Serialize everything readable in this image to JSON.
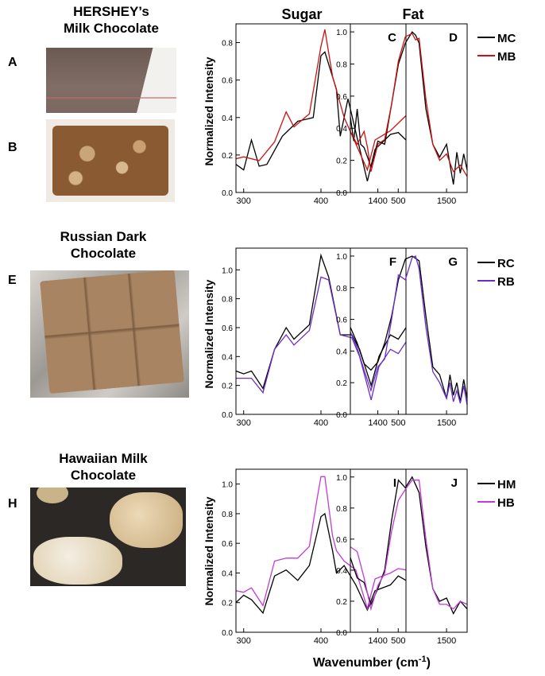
{
  "captions": {
    "hershey": [
      "HERSHEY’s",
      "Milk Chocolate"
    ],
    "russian": [
      "Russian Dark",
      "Chocolate"
    ],
    "hawaiian": [
      "Hawaiian Milk",
      "Chocolate"
    ]
  },
  "photo_labels": {
    "a": "A",
    "b": "B",
    "e": "E",
    "h": "H"
  },
  "column_titles": {
    "sugar": "Sugar",
    "fat": "Fat"
  },
  "ylabel": "Normalized Intensity",
  "xlabel": {
    "main": "Wavenumber (cm",
    "sup": "-1",
    "close": ")"
  },
  "colors": {
    "black": "#000000",
    "red": "#d01010",
    "purple": "#6a2ec8",
    "magenta": "#c23ad8"
  },
  "legends": [
    {
      "series": [
        {
          "name": "MC",
          "color": "#000000"
        },
        {
          "name": "MB",
          "color": "#d01010"
        }
      ]
    },
    {
      "series": [
        {
          "name": "RC",
          "color": "#000000"
        },
        {
          "name": "RB",
          "color": "#6a2ec8"
        }
      ]
    },
    {
      "series": [
        {
          "name": "HM",
          "color": "#000000"
        },
        {
          "name": "HB",
          "color": "#c23ad8"
        }
      ]
    }
  ],
  "chart_data": [
    {
      "panel": "C",
      "type": "line",
      "xlim": [
        290,
        510
      ],
      "ylim": [
        0,
        0.9
      ],
      "xticks": [
        300,
        400,
        500
      ],
      "yticks": [
        0.0,
        0.2,
        0.4,
        0.6,
        0.8
      ],
      "series": [
        {
          "name": "MC",
          "color": "#000000",
          "x": [
            290,
            300,
            310,
            320,
            330,
            350,
            370,
            390,
            400,
            405,
            420,
            425,
            435,
            460,
            470,
            490,
            500,
            510
          ],
          "y": [
            0.15,
            0.12,
            0.28,
            0.14,
            0.15,
            0.3,
            0.38,
            0.4,
            0.73,
            0.75,
            0.55,
            0.3,
            0.5,
            0.06,
            0.23,
            0.31,
            0.32,
            0.28
          ]
        },
        {
          "name": "MB",
          "color": "#d01010",
          "x": [
            290,
            300,
            320,
            340,
            355,
            365,
            385,
            400,
            405,
            415,
            430,
            460,
            470,
            490,
            510
          ],
          "y": [
            0.18,
            0.19,
            0.17,
            0.27,
            0.43,
            0.35,
            0.42,
            0.78,
            0.87,
            0.62,
            0.4,
            0.12,
            0.28,
            0.33,
            0.41
          ]
        }
      ]
    },
    {
      "panel": "D",
      "type": "line",
      "xlim": [
        1360,
        1530
      ],
      "ylim": [
        0,
        1.05
      ],
      "xticks": [
        1400,
        1500
      ],
      "yticks": [
        0.0,
        0.2,
        0.4,
        0.6,
        0.8,
        1.0
      ],
      "series": [
        {
          "name": "MC",
          "color": "#000000",
          "x": [
            1360,
            1365,
            1370,
            1375,
            1380,
            1390,
            1400,
            1410,
            1420,
            1430,
            1440,
            1450,
            1455,
            1460,
            1470,
            1480,
            1490,
            1500,
            1510,
            1515,
            1520,
            1525,
            1530
          ],
          "y": [
            0.47,
            0.32,
            0.52,
            0.3,
            0.28,
            0.16,
            0.32,
            0.3,
            0.55,
            0.8,
            0.93,
            1.0,
            0.98,
            0.93,
            0.52,
            0.3,
            0.22,
            0.3,
            0.05,
            0.25,
            0.12,
            0.24,
            0.14
          ]
        },
        {
          "name": "MB",
          "color": "#d01010",
          "x": [
            1360,
            1370,
            1380,
            1385,
            1390,
            1400,
            1410,
            1420,
            1430,
            1440,
            1450,
            1455,
            1460,
            1470,
            1480,
            1490,
            1500,
            1510,
            1520,
            1530
          ],
          "y": [
            0.38,
            0.3,
            0.38,
            0.28,
            0.13,
            0.3,
            0.33,
            0.55,
            0.82,
            0.97,
            0.99,
            0.95,
            0.96,
            0.58,
            0.3,
            0.2,
            0.24,
            0.13,
            0.17,
            0.1
          ]
        }
      ]
    },
    {
      "panel": "F",
      "type": "line",
      "xlim": [
        290,
        510
      ],
      "ylim": [
        0,
        1.15
      ],
      "xticks": [
        300,
        400,
        500
      ],
      "yticks": [
        0.0,
        0.2,
        0.4,
        0.6,
        0.8,
        1.0
      ],
      "series": [
        {
          "name": "RC",
          "color": "#000000",
          "x": [
            290,
            300,
            310,
            325,
            340,
            355,
            365,
            385,
            400,
            410,
            425,
            440,
            450,
            465,
            475,
            490,
            500,
            510
          ],
          "y": [
            0.3,
            0.28,
            0.3,
            0.18,
            0.45,
            0.6,
            0.52,
            0.62,
            1.1,
            0.95,
            0.55,
            0.55,
            0.45,
            0.2,
            0.4,
            0.55,
            0.52,
            0.6
          ]
        },
        {
          "name": "RB",
          "color": "#6a2ec8",
          "x": [
            290,
            300,
            310,
            325,
            340,
            355,
            365,
            385,
            400,
            410,
            425,
            440,
            450,
            465,
            475,
            490,
            500,
            510
          ],
          "y": [
            0.25,
            0.25,
            0.25,
            0.15,
            0.45,
            0.55,
            0.48,
            0.58,
            0.95,
            0.93,
            0.55,
            0.53,
            0.4,
            0.1,
            0.33,
            0.45,
            0.42,
            0.5
          ]
        }
      ]
    },
    {
      "panel": "G",
      "type": "line",
      "xlim": [
        1360,
        1530
      ],
      "ylim": [
        0,
        1.05
      ],
      "xticks": [
        1400,
        1500
      ],
      "yticks": [
        0.0,
        0.2,
        0.4,
        0.6,
        0.8,
        1.0
      ],
      "series": [
        {
          "name": "RC",
          "color": "#000000",
          "x": [
            1360,
            1370,
            1380,
            1390,
            1400,
            1410,
            1420,
            1430,
            1440,
            1450,
            1460,
            1470,
            1480,
            1490,
            1500,
            1505,
            1510,
            1515,
            1520,
            1525,
            1530
          ],
          "y": [
            0.55,
            0.45,
            0.32,
            0.28,
            0.33,
            0.45,
            0.62,
            0.85,
            0.98,
            1.0,
            0.97,
            0.62,
            0.3,
            0.25,
            0.1,
            0.25,
            0.12,
            0.2,
            0.08,
            0.22,
            0.1
          ]
        },
        {
          "name": "RB",
          "color": "#6a2ec8",
          "x": [
            1360,
            1370,
            1380,
            1390,
            1400,
            1410,
            1420,
            1430,
            1440,
            1450,
            1455,
            1460,
            1470,
            1480,
            1490,
            1500,
            1505,
            1510,
            1515,
            1520,
            1525,
            1530
          ],
          "y": [
            0.52,
            0.42,
            0.28,
            0.15,
            0.3,
            0.35,
            0.6,
            0.88,
            0.85,
            0.99,
            1.0,
            0.92,
            0.55,
            0.27,
            0.2,
            0.1,
            0.2,
            0.08,
            0.15,
            0.07,
            0.18,
            0.06
          ]
        }
      ]
    },
    {
      "panel": "I",
      "type": "line",
      "xlim": [
        290,
        510
      ],
      "ylim": [
        0,
        1.1
      ],
      "xticks": [
        300,
        400,
        500
      ],
      "yticks": [
        0.0,
        0.2,
        0.4,
        0.6,
        0.8,
        1.0
      ],
      "series": [
        {
          "name": "HM",
          "color": "#000000",
          "x": [
            290,
            300,
            310,
            325,
            340,
            355,
            370,
            385,
            400,
            405,
            415,
            420,
            430,
            445,
            460,
            470,
            490,
            500,
            510
          ],
          "y": [
            0.2,
            0.25,
            0.22,
            0.13,
            0.38,
            0.42,
            0.35,
            0.45,
            0.78,
            0.8,
            0.55,
            0.4,
            0.45,
            0.32,
            0.15,
            0.28,
            0.32,
            0.38,
            0.35
          ]
        },
        {
          "name": "HB",
          "color": "#c23ad8",
          "x": [
            290,
            300,
            310,
            325,
            340,
            355,
            370,
            385,
            395,
            400,
            405,
            415,
            420,
            430,
            445,
            460,
            470,
            490,
            500,
            510
          ],
          "y": [
            0.28,
            0.27,
            0.3,
            0.18,
            0.48,
            0.5,
            0.5,
            0.58,
            0.9,
            1.05,
            1.05,
            0.65,
            0.55,
            0.48,
            0.42,
            0.16,
            0.36,
            0.4,
            0.43,
            0.42
          ]
        }
      ]
    },
    {
      "panel": "J",
      "type": "line",
      "xlim": [
        1360,
        1530
      ],
      "ylim": [
        0,
        1.05
      ],
      "xticks": [
        1400,
        1500
      ],
      "yticks": [
        0.0,
        0.2,
        0.4,
        0.6,
        0.8,
        1.0
      ],
      "series": [
        {
          "name": "HM",
          "color": "#000000",
          "x": [
            1360,
            1370,
            1380,
            1390,
            1400,
            1410,
            1420,
            1430,
            1440,
            1450,
            1460,
            1470,
            1480,
            1490,
            1500,
            1510,
            1520,
            1530
          ],
          "y": [
            0.48,
            0.35,
            0.32,
            0.18,
            0.28,
            0.4,
            0.72,
            0.98,
            0.93,
            1.0,
            0.9,
            0.55,
            0.28,
            0.2,
            0.22,
            0.12,
            0.2,
            0.15
          ]
        },
        {
          "name": "HB",
          "color": "#c23ad8",
          "x": [
            1360,
            1370,
            1380,
            1390,
            1400,
            1410,
            1420,
            1430,
            1440,
            1450,
            1460,
            1470,
            1480,
            1490,
            1500,
            1510,
            1520,
            1530
          ],
          "y": [
            0.55,
            0.52,
            0.35,
            0.15,
            0.3,
            0.38,
            0.65,
            0.85,
            0.92,
            0.98,
            0.98,
            0.6,
            0.28,
            0.18,
            0.18,
            0.15,
            0.2,
            0.18
          ]
        }
      ]
    }
  ]
}
